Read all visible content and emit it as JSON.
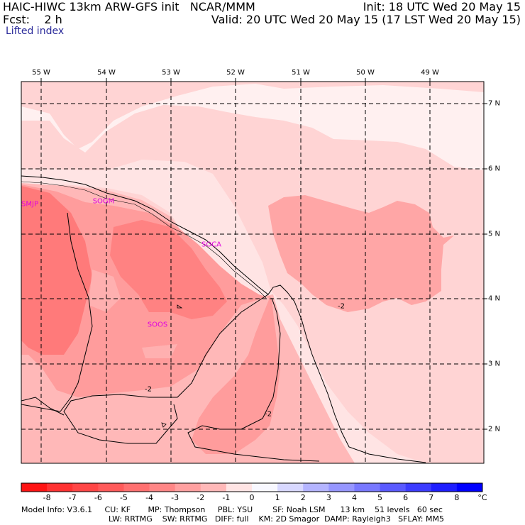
{
  "header": {
    "left_line1": "HAIC-HIWC 13km ARW-GFS init   NCAR/MMM",
    "left_line2": "Fcst:    2 h",
    "right_line1": "Init: 18 UTC Wed 20 May 15",
    "right_line2": "Valid: 20 UTC Wed 20 May 15 (17 LST Wed 20 May 15)",
    "field": "Lifted index"
  },
  "lon_labels": [
    "55 W",
    "54 W",
    "53 W",
    "52 W",
    "51 W",
    "50 W",
    "49 W"
  ],
  "lat_labels": [
    "7 N",
    "6 N",
    "5 N",
    "4 N",
    "3 N",
    "2 N"
  ],
  "stations": [
    "SMJP",
    "SOGM",
    "SOCA",
    "SOOS"
  ],
  "contour_labels": [
    "-2",
    "-2",
    "-2"
  ],
  "colorbar": {
    "labels": [
      "-8",
      "-7",
      "-6",
      "-5",
      "-4",
      "-3",
      "-2",
      "-1",
      "0",
      "1",
      "2",
      "3",
      "4",
      "5",
      "6",
      "7",
      "8"
    ],
    "unit": "°C",
    "colors": [
      "#ff1414",
      "#ff3232",
      "#ff4646",
      "#ff5a5a",
      "#ff7070",
      "#ff8686",
      "#ffa0a0",
      "#ffb8b8",
      "#ffe4e4",
      "#f8f8ff",
      "#d8d8ff",
      "#b4b4ff",
      "#9696ff",
      "#7878ff",
      "#5a5aff",
      "#3c3cff",
      "#1e1eff",
      "#0000ff"
    ]
  },
  "map_colors": {
    "lightest": "#fff0f0",
    "light": "#ffd4d4",
    "medium": "#ffb8b8",
    "strong": "#ff9c9c",
    "stronger": "#ff8a8a",
    "strongest": "#ff7676",
    "blue_tint": "#e4e4ff"
  },
  "footer": {
    "line1": "Model Info: V3.6.1     CU: KF       MP: Thompson     PBL: YSU        SF: Noah LSM      13 km    51 levels   60 sec",
    "line2": "LW: RRTMG    SW: RRTMG   DIFF: full    KM: 2D Smagor  DAMP: Rayleigh3   SFLAY: MM5"
  }
}
